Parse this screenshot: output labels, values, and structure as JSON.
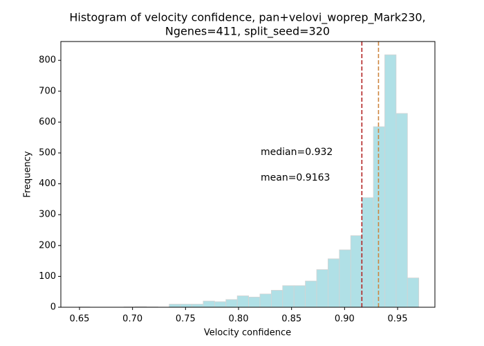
{
  "chart_data": {
    "type": "histogram",
    "title": "Histogram of velocity confidence, pan+velovi_woprep_Mark230,",
    "subtitle": "Ngenes=411, split_seed=320",
    "x_label": "Velocity confidence",
    "y_label": "Frequency",
    "bins": [
      0.649,
      0.6597,
      0.6704,
      0.6811,
      0.6918,
      0.7025,
      0.7132,
      0.7239,
      0.7346,
      0.7453,
      0.756,
      0.7667,
      0.7774,
      0.7881,
      0.7988,
      0.8095,
      0.8202,
      0.8309,
      0.8416,
      0.8523,
      0.863,
      0.8737,
      0.8844,
      0.8951,
      0.9058,
      0.9165,
      0.9272,
      0.9379,
      0.9486,
      0.9593,
      0.97
    ],
    "values": [
      1,
      0,
      0,
      0,
      1,
      2,
      1,
      0,
      10,
      10,
      10,
      20,
      18,
      25,
      37,
      33,
      43,
      55,
      70,
      70,
      85,
      122,
      157,
      186,
      232,
      355,
      585,
      818,
      628,
      95
    ],
    "color": "#b0e0e6",
    "edgecolor": "#d3d3d3",
    "xlim": [
      0.6324,
      0.9852
    ],
    "xticks": [
      0.65,
      {
        "value": 0.7,
        "label": "0.70"
      },
      0.75,
      {
        "value": 0.8,
        "label": "0.80"
      },
      0.85,
      {
        "value": 0.9,
        "label": "0.90"
      },
      0.95
    ],
    "ylim": [
      0,
      861
    ],
    "yticks": [
      0,
      100,
      200,
      300,
      400,
      500,
      600,
      700,
      800
    ],
    "reference_lines": [
      {
        "value": 0.932,
        "color": "#cd853f",
        "text": "median=0.932",
        "text_color": "#a0522d"
      },
      {
        "value": 0.9163,
        "color": "#b22222",
        "text": "mean=0.9163",
        "text_color": "#b22222"
      }
    ]
  }
}
